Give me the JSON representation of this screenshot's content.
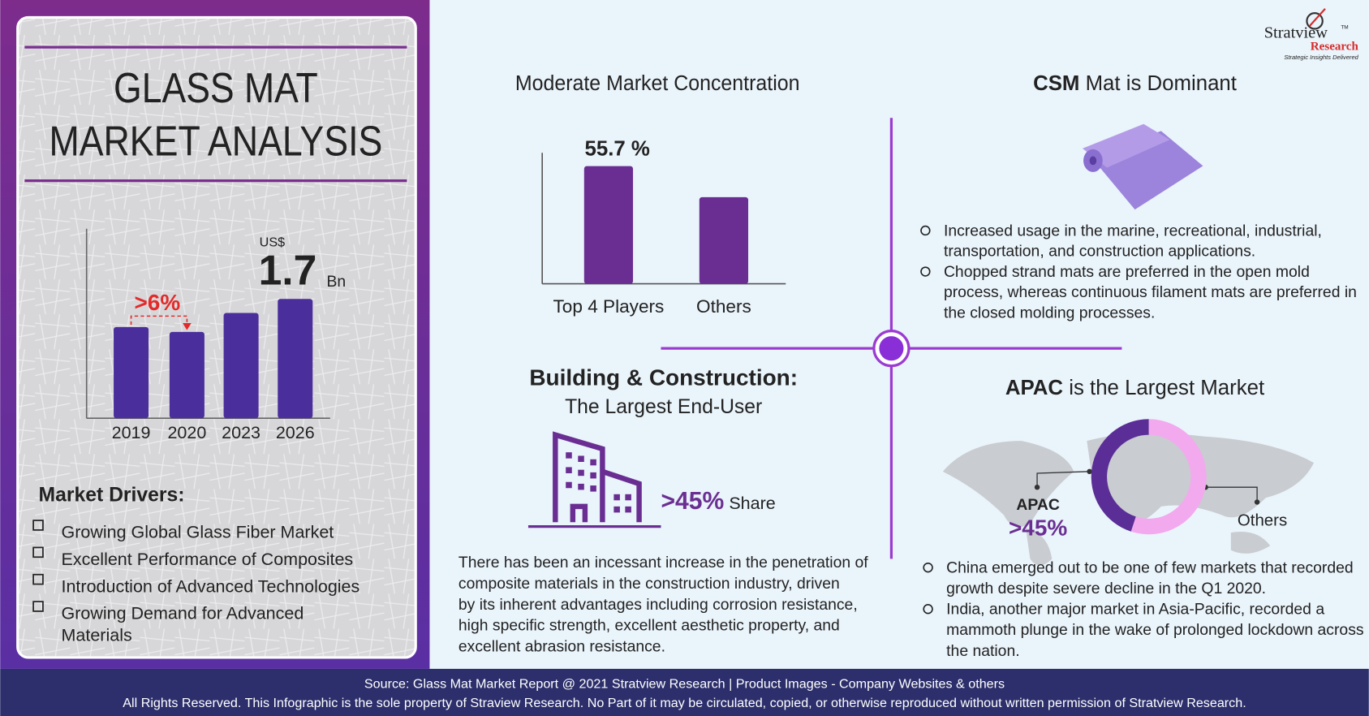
{
  "logo": {
    "name": "Stratview",
    "tm": "TM",
    "sub": "Research",
    "tagline": "Strategic Insights Delivered"
  },
  "left_panel": {
    "title_lines": [
      "GLASS MAT",
      "MARKET ANALYSIS"
    ],
    "drivers_title": "Market Drivers:",
    "drivers": [
      [
        "Growing Global Glass Fiber Market"
      ],
      [
        "Excellent Performance of Composites"
      ],
      [
        "Introduction of Advanced Technologies"
      ],
      [
        "Growing Demand for Advanced",
        "Materials"
      ]
    ]
  },
  "concentration": {
    "title": "Moderate Market Concentration"
  },
  "csm": {
    "title_bold": "CSM",
    "title": "Mat is Dominant",
    "bullets": [
      [
        "Increased usage in the marine, recreational, industrial,",
        "transportation, and construction applications."
      ],
      [
        "Chopped strand mats are preferred in the open mold",
        "process, whereas continuous filament mats are preferred in",
        "the closed molding processes."
      ]
    ]
  },
  "building": {
    "title_bold": "Building & Construction:",
    "subtitle": "The Largest End-User",
    "share": ">45%",
    "share_label": "Share",
    "paragraph": [
      "There has been an incessant increase in the penetration of",
      "composite materials in the construction industry, driven",
      "by its inherent advantages including corrosion resistance,",
      "high specific strength, excellent aesthetic property, and",
      "excellent abrasion resistance."
    ]
  },
  "apac": {
    "title_bold": "APAC",
    "title": "is the Largest Market",
    "bullets": [
      [
        "China emerged out to be one of few markets that recorded",
        "growth despite severe decline in the Q1 2020."
      ],
      [
        "India, another major market in Asia-Pacific, recorded a",
        "mammoth plunge in the wake of prolonged lockdown across",
        "the nation."
      ]
    ]
  },
  "footer": {
    "source": "Source: Glass Mat Market  Report @ 2021 Stratview Research | Product Images  - Company Websites & others",
    "rights": "All Rights Reserved. This Infographic is the sole property of Straview Research. No Part of it may be circulated, copied, or otherwise reproduced without written permission of Stratview Research."
  },
  "chart_data": [
    {
      "type": "bar",
      "categories": [
        "2019",
        "2020",
        "2023",
        "2026"
      ],
      "values": [
        1.3,
        1.23,
        1.5,
        1.7
      ],
      "value_labels": [
        null,
        null,
        null,
        "1.7"
      ],
      "currency": "US$",
      "unit": "Bn",
      "growth_label": ">6%",
      "color": "#4a2f9c",
      "ylim": [
        0,
        2.7
      ]
    },
    {
      "type": "bar",
      "categories": [
        "Top 4 Players",
        "Others"
      ],
      "values": [
        55.7,
        41
      ],
      "value_labels": [
        "55.7 %",
        null
      ],
      "color": "#6a2e93",
      "ylim": [
        0,
        62
      ]
    },
    {
      "type": "pie",
      "categories": [
        "APAC",
        "Others"
      ],
      "values": [
        45,
        55
      ],
      "value_labels": [
        ">45%",
        null
      ],
      "colors": [
        "#5b2d96",
        "#f3a9ee"
      ]
    }
  ]
}
